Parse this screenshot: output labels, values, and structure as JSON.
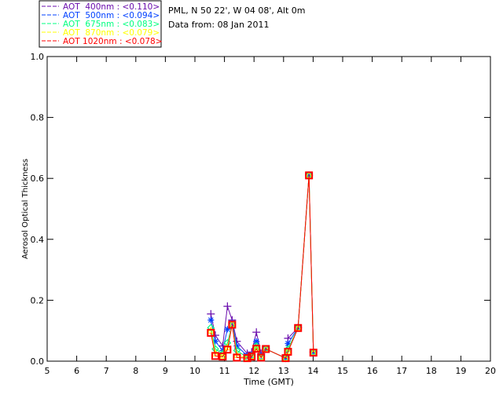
{
  "header": {
    "location": "PML, N 50 22', W 04 08', Alt 0m",
    "date": "Data from: 08 Jan 2011"
  },
  "chart_data": {
    "type": "line",
    "xlabel": "Time (GMT)",
    "ylabel": "Aerosol Optical Thickness",
    "xlim": [
      5,
      20
    ],
    "ylim": [
      0,
      1.0
    ],
    "xticks": [
      "5",
      "6",
      "7",
      "8",
      "9",
      "10",
      "11",
      "12",
      "13",
      "14",
      "15",
      "16",
      "17",
      "18",
      "19",
      "20"
    ],
    "yticks": [
      "0.0",
      "0.2",
      "0.4",
      "0.6",
      "0.8",
      "1.0"
    ],
    "legend_position": "top-left-outside",
    "x": [
      10.54,
      10.69,
      10.94,
      11.1,
      11.26,
      11.42,
      11.77,
      11.92,
      12.08,
      12.24,
      12.4,
      13.07,
      13.15,
      13.49,
      13.86,
      14.01
    ],
    "series": [
      {
        "name": "AOT  400nm : <0.110>",
        "color": "#6a0dad",
        "marker": "plus",
        "values": [
          0.155,
          0.085,
          0.05,
          0.18,
          0.135,
          0.065,
          0.025,
          0.03,
          0.095,
          0.025,
          0.04,
          0.01,
          0.075,
          0.11,
          0.61,
          0.03
        ]
      },
      {
        "name": "AOT  500nm : <0.094>",
        "color": "#0040ff",
        "marker": "star",
        "values": [
          0.135,
          0.065,
          0.035,
          0.105,
          0.125,
          0.05,
          0.018,
          0.02,
          0.065,
          0.018,
          0.04,
          0.01,
          0.058,
          0.11,
          0.61,
          0.03
        ]
      },
      {
        "name": "AOT  675nm : <0.083>",
        "color": "#00ff80",
        "marker": "diamond",
        "values": [
          0.11,
          0.04,
          0.025,
          0.06,
          0.12,
          0.035,
          0.012,
          0.018,
          0.05,
          0.014,
          0.04,
          0.01,
          0.04,
          0.11,
          0.61,
          0.029
        ]
      },
      {
        "name": "AOT  870nm : <0.079>",
        "color": "#ffff00",
        "marker": "triangle",
        "values": [
          0.1,
          0.025,
          0.018,
          0.045,
          0.12,
          0.02,
          0.01,
          0.016,
          0.044,
          0.012,
          0.04,
          0.01,
          0.033,
          0.109,
          0.61,
          0.028
        ]
      },
      {
        "name": "AOT 1020nm : <0.078>",
        "color": "#ff0000",
        "marker": "square",
        "values": [
          0.093,
          0.017,
          0.015,
          0.038,
          0.12,
          0.012,
          0.01,
          0.015,
          0.041,
          0.012,
          0.04,
          0.01,
          0.031,
          0.109,
          0.61,
          0.028
        ]
      }
    ]
  }
}
